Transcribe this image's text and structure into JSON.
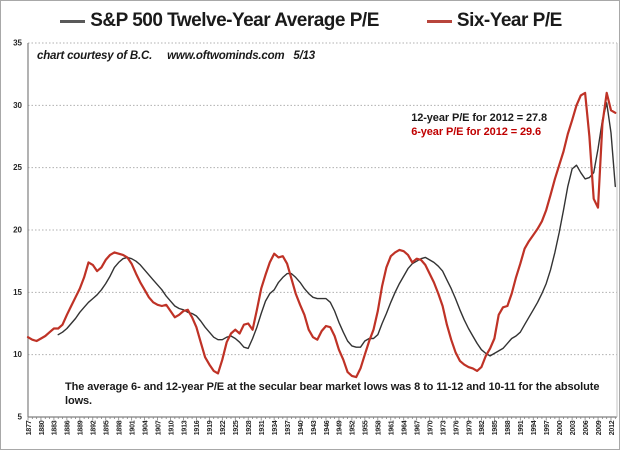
{
  "legend": {
    "series1_label": "S&P 500 Twelve-Year Average P/E",
    "series2_label": "Six-Year P/E"
  },
  "courtesy_note": "chart courtesy of B.C.     www.oftwominds.com   5/13",
  "callout": {
    "line1": "12-year P/E for 2012 = 27.8",
    "line2": "6-year P/E for 2012 = 29.6"
  },
  "note": {
    "line1": "The average 6- and 12-year P/E at the secular bear market lows was 8 to 11-12 and 10-11 for the absolute",
    "line2": "lows."
  },
  "colors": {
    "six_year_line": "#bf3226",
    "twelve_year_line": "#333333",
    "legend_dash_black": "#595959",
    "legend_dash_red": "#b8453c",
    "callout_red": "#c00000",
    "grid": "#b0b0b0",
    "axis": "#808080",
    "tick_label": "#262626"
  },
  "chart_data": {
    "type": "line",
    "title": "",
    "xlabel": "",
    "ylabel": "",
    "ylim": [
      5,
      35
    ],
    "xlim": [
      1877,
      2013.5
    ],
    "y_ticks": [
      5,
      10,
      15,
      20,
      25,
      30,
      35
    ],
    "grid": "horizontal-dotted",
    "legend_position": "top",
    "x_tick_years": [
      1877,
      1880,
      1883,
      1886,
      1889,
      1892,
      1895,
      1898,
      1901,
      1904,
      1907,
      1910,
      1913,
      1916,
      1919,
      1922,
      1925,
      1928,
      1931,
      1934,
      1937,
      1940,
      1943,
      1946,
      1949,
      1952,
      1955,
      1958,
      1961,
      1964,
      1967,
      1970,
      1973,
      1976,
      1979,
      1982,
      1985,
      1988,
      1991,
      1994,
      1997,
      2000,
      2003,
      2006,
      2009,
      2012
    ],
    "series": [
      {
        "name": "S&P 500 Twelve-Year Average P/E",
        "color": "#333333",
        "width": 1.4,
        "start_year": 1884,
        "values": [
          11.6,
          11.8,
          12.1,
          12.5,
          12.9,
          13.4,
          13.8,
          14.2,
          14.5,
          14.8,
          15.2,
          15.7,
          16.3,
          17.0,
          17.4,
          17.7,
          17.8,
          17.7,
          17.5,
          17.2,
          16.8,
          16.4,
          16.0,
          15.6,
          15.2,
          14.7,
          14.3,
          13.9,
          13.7,
          13.6,
          13.4,
          13.3,
          13.1,
          12.7,
          12.2,
          11.8,
          11.4,
          11.2,
          11.2,
          11.4,
          11.5,
          11.3,
          11.0,
          10.6,
          10.5,
          11.3,
          12.2,
          13.3,
          14.3,
          14.9,
          15.2,
          15.8,
          16.2,
          16.5,
          16.5,
          16.2,
          15.8,
          15.3,
          14.9,
          14.6,
          14.5,
          14.5,
          14.5,
          14.2,
          13.5,
          12.6,
          11.8,
          11.1,
          10.7,
          10.6,
          10.6,
          11.1,
          11.3,
          11.3,
          11.6,
          12.5,
          13.3,
          14.2,
          15.0,
          15.7,
          16.3,
          16.9,
          17.3,
          17.5,
          17.7,
          17.8,
          17.6,
          17.4,
          17.1,
          16.7,
          16.0,
          15.3,
          14.5,
          13.6,
          12.8,
          12.1,
          11.5,
          10.9,
          10.4,
          10.1,
          9.9,
          10.1,
          10.3,
          10.5,
          10.9,
          11.3,
          11.5,
          11.8,
          12.4,
          13.0,
          13.6,
          14.2,
          14.9,
          15.7,
          16.8,
          18.2,
          19.8,
          21.6,
          23.5,
          24.9,
          25.2,
          24.6,
          24.1,
          24.2,
          24.6,
          26.5,
          28.8,
          30.2,
          27.8,
          23.5
        ]
      },
      {
        "name": "Six-Year P/E",
        "color": "#bf3226",
        "width": 2.2,
        "start_year": 1877,
        "values": [
          11.4,
          11.2,
          11.1,
          11.3,
          11.5,
          11.8,
          12.1,
          12.1,
          12.4,
          13.2,
          13.9,
          14.6,
          15.3,
          16.2,
          17.4,
          17.2,
          16.7,
          17.0,
          17.6,
          18.0,
          18.2,
          18.1,
          18.0,
          17.8,
          17.3,
          16.5,
          15.8,
          15.2,
          14.6,
          14.2,
          14.0,
          13.9,
          14.0,
          13.5,
          13.0,
          13.2,
          13.5,
          13.6,
          13.0,
          12.2,
          11.0,
          9.8,
          9.2,
          8.7,
          8.5,
          9.6,
          11.0,
          11.7,
          12.0,
          11.7,
          12.4,
          12.5,
          12.0,
          13.6,
          15.3,
          16.4,
          17.4,
          18.1,
          17.8,
          17.9,
          17.3,
          16.1,
          14.9,
          14.0,
          13.2,
          12.0,
          11.4,
          11.2,
          11.9,
          12.3,
          12.2,
          11.5,
          10.4,
          9.6,
          8.6,
          8.3,
          8.2,
          8.9,
          10.0,
          11.1,
          12.0,
          13.5,
          15.5,
          17.0,
          17.9,
          18.2,
          18.4,
          18.3,
          18.0,
          17.4,
          17.7,
          17.6,
          17.2,
          16.5,
          15.8,
          14.9,
          13.9,
          12.4,
          11.2,
          10.2,
          9.5,
          9.2,
          9.0,
          8.9,
          8.7,
          9.0,
          9.9,
          10.5,
          11.3,
          13.2,
          13.8,
          13.9,
          14.9,
          16.2,
          17.3,
          18.5,
          19.1,
          19.6,
          20.1,
          20.7,
          21.6,
          22.8,
          24.1,
          25.2,
          26.3,
          27.7,
          28.8,
          30.0,
          30.8,
          31.0,
          27.5,
          22.5,
          21.8,
          28.5,
          31.0,
          29.6,
          29.4
        ]
      }
    ]
  }
}
